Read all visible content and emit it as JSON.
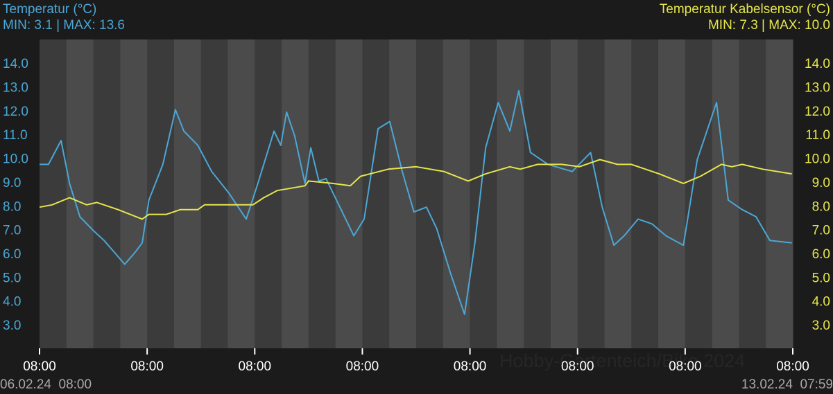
{
  "chart_data": {
    "type": "line",
    "watermark": "Hobby-Gartenteich/Biko 2024",
    "start_label": "06.02.24  08:00",
    "end_label": "13.02.24  07:59",
    "xlim": [
      0,
      168
    ],
    "xticks": [
      {
        "value": 0,
        "label": "08:00"
      },
      {
        "value": 24,
        "label": "08:00"
      },
      {
        "value": 48,
        "label": "08:00"
      },
      {
        "value": 72,
        "label": "08:00"
      },
      {
        "value": 96,
        "label": "08:00"
      },
      {
        "value": 120,
        "label": "08:00"
      },
      {
        "value": 144,
        "label": "08:00"
      },
      {
        "value": 168,
        "label": "08:00"
      }
    ],
    "ylim": [
      2.07,
      15.05
    ],
    "yticks": [
      {
        "value": 3,
        "label": "3.0"
      },
      {
        "value": 4,
        "label": "4.0"
      },
      {
        "value": 5,
        "label": "5.0"
      },
      {
        "value": 6,
        "label": "6.0"
      },
      {
        "value": 7,
        "label": "7.0"
      },
      {
        "value": 8,
        "label": "8.0"
      },
      {
        "value": 9,
        "label": "9.0"
      },
      {
        "value": 10,
        "label": "10.0"
      },
      {
        "value": 11,
        "label": "11.0"
      },
      {
        "value": 12,
        "label": "12.0"
      },
      {
        "value": 13,
        "label": "13.0"
      },
      {
        "value": 14,
        "label": "14.0"
      }
    ],
    "y2lim": [
      2.07,
      15.05
    ],
    "y2ticks": [
      {
        "value": 3,
        "label": "3.0"
      },
      {
        "value": 4,
        "label": "4.0"
      },
      {
        "value": 5,
        "label": "5.0"
      },
      {
        "value": 6,
        "label": "6.0"
      },
      {
        "value": 7,
        "label": "7.0"
      },
      {
        "value": 8,
        "label": "8.0"
      },
      {
        "value": 9,
        "label": "9.0"
      },
      {
        "value": 10,
        "label": "10.0"
      },
      {
        "value": 11,
        "label": "11.0"
      },
      {
        "value": 12,
        "label": "12.0"
      },
      {
        "value": 13,
        "label": "13.0"
      },
      {
        "value": 14,
        "label": "14.0"
      }
    ],
    "series": [
      {
        "name": "Temperatur (°C)",
        "stats": "MIN: 3.1 | MAX: 13.6",
        "color": "#4ba7d6",
        "x": [
          0,
          2.0,
          4.8,
          6.7,
          9.0,
          12.1,
          14.4,
          16.7,
          19.0,
          21.3,
          22.9,
          24.4,
          27.5,
          30.3,
          32.2,
          35.3,
          38.4,
          42.2,
          46.1,
          48.7,
          52.3,
          53.8,
          55.1,
          56.9,
          59.2,
          60.5,
          62.3,
          63.9,
          67.0,
          70.1,
          72.4,
          75.5,
          78.1,
          80.9,
          83.5,
          86.3,
          88.6,
          91.7,
          94.8,
          97.1,
          99.5,
          102.3,
          104.9,
          106.9,
          109.5,
          113.4,
          118.8,
          122.9,
          125.5,
          128.1,
          130.4,
          133.5,
          136.6,
          139.7,
          143.6,
          146.7,
          151.0,
          153.6,
          156.7,
          159.8,
          162.9,
          167.8
        ],
        "values": [
          9.8,
          9.8,
          10.8,
          9.0,
          7.6,
          7.0,
          6.6,
          6.1,
          5.6,
          6.1,
          6.5,
          8.3,
          9.8,
          12.1,
          11.2,
          10.6,
          9.5,
          8.6,
          7.5,
          9.0,
          11.2,
          10.6,
          12.0,
          11.0,
          9.0,
          10.5,
          9.1,
          9.2,
          8.0,
          6.8,
          7.5,
          11.3,
          11.6,
          9.5,
          7.8,
          8.0,
          7.1,
          5.2,
          3.5,
          6.5,
          10.5,
          12.4,
          11.2,
          12.9,
          10.3,
          9.8,
          9.5,
          10.3,
          8.0,
          6.4,
          6.8,
          7.5,
          7.3,
          6.8,
          6.4,
          10.0,
          12.4,
          8.3,
          7.9,
          7.6,
          6.6,
          6.5
        ]
      },
      {
        "name": "Temperatur Kabelsensor (°C)",
        "stats": "MIN: 7.3 | MAX: 10.0",
        "color": "#e6e64c",
        "axis": "y2",
        "x": [
          0,
          2.8,
          6.7,
          10.5,
          12.8,
          17.5,
          22.9,
          24.4,
          28.3,
          31.4,
          35.3,
          36.8,
          45.3,
          47.6,
          50.0,
          53.0,
          56.1,
          59.2,
          60.0,
          65.4,
          69.3,
          71.6,
          77.8,
          84.0,
          90.2,
          95.6,
          99.5,
          104.9,
          107.2,
          111.1,
          116.5,
          120.4,
          125.0,
          128.9,
          132.0,
          138.2,
          143.6,
          147.4,
          152.1,
          154.4,
          156.7,
          161.3,
          167.8
        ],
        "values": [
          8.0,
          8.1,
          8.4,
          8.1,
          8.2,
          7.9,
          7.5,
          7.7,
          7.7,
          7.9,
          7.9,
          8.1,
          8.1,
          8.1,
          8.4,
          8.7,
          8.8,
          8.9,
          9.1,
          9.0,
          8.9,
          9.3,
          9.6,
          9.7,
          9.5,
          9.1,
          9.4,
          9.7,
          9.6,
          9.8,
          9.8,
          9.7,
          10.0,
          9.8,
          9.8,
          9.4,
          9.0,
          9.3,
          9.8,
          9.7,
          9.8,
          9.6,
          9.4
        ]
      }
    ]
  }
}
